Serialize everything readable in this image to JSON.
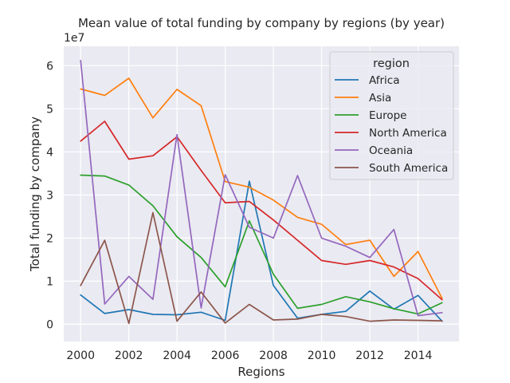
{
  "chart_data": {
    "type": "line",
    "title": "Mean value of total funding by company by regions (by year)",
    "xlabel": "Regions",
    "ylabel": "Total funding by company",
    "y_multiplier_label": "1e7",
    "x": [
      2000,
      2001,
      2002,
      2003,
      2004,
      2005,
      2006,
      2007,
      2008,
      2009,
      2010,
      2011,
      2012,
      2013,
      2014,
      2015
    ],
    "x_ticks": [
      "2000",
      "2002",
      "2004",
      "2006",
      "2008",
      "2010",
      "2012",
      "2014"
    ],
    "y_ticks": [
      "0",
      "1",
      "2",
      "3",
      "4",
      "5",
      "6"
    ],
    "xlim": [
      1999.3,
      2015.7
    ],
    "ylim": [
      -0.4,
      6.45
    ],
    "grid": true,
    "legend": {
      "title": "region",
      "placement": "top-right"
    },
    "series": [
      {
        "name": "Africa",
        "color": "#1f77b4",
        "values": [
          0.68,
          0.25,
          0.34,
          0.23,
          0.22,
          0.28,
          0.09,
          3.32,
          0.9,
          0.14,
          0.23,
          0.3,
          0.77,
          0.35,
          0.67,
          0.07
        ]
      },
      {
        "name": "Asia",
        "color": "#ff7f0e",
        "values": [
          5.46,
          5.31,
          5.71,
          4.79,
          5.45,
          5.07,
          3.31,
          3.18,
          2.88,
          2.48,
          2.32,
          1.85,
          1.95,
          1.11,
          1.69,
          0.6
        ]
      },
      {
        "name": "Europe",
        "color": "#2ca02c",
        "values": [
          3.46,
          3.44,
          3.23,
          2.75,
          2.03,
          1.55,
          0.87,
          2.4,
          1.16,
          0.37,
          0.46,
          0.64,
          0.52,
          0.36,
          0.24,
          0.5
        ]
      },
      {
        "name": "North America",
        "color": "#d62728",
        "values": [
          4.25,
          4.71,
          3.83,
          3.91,
          4.35,
          3.57,
          2.82,
          2.85,
          2.42,
          1.95,
          1.48,
          1.39,
          1.48,
          1.33,
          1.06,
          0.57
        ]
      },
      {
        "name": "Oceania",
        "color": "#9467bd",
        "values": [
          6.12,
          0.47,
          1.11,
          0.58,
          4.4,
          0.38,
          3.47,
          2.25,
          2.0,
          3.45,
          2.0,
          1.81,
          1.55,
          2.2,
          0.2,
          0.27
        ]
      },
      {
        "name": "South America",
        "color": "#8c564b",
        "values": [
          0.9,
          1.95,
          0.02,
          2.59,
          0.07,
          0.75,
          0.03,
          0.46,
          0.1,
          0.12,
          0.23,
          0.18,
          0.07,
          0.1,
          0.09,
          0.08
        ]
      }
    ]
  }
}
